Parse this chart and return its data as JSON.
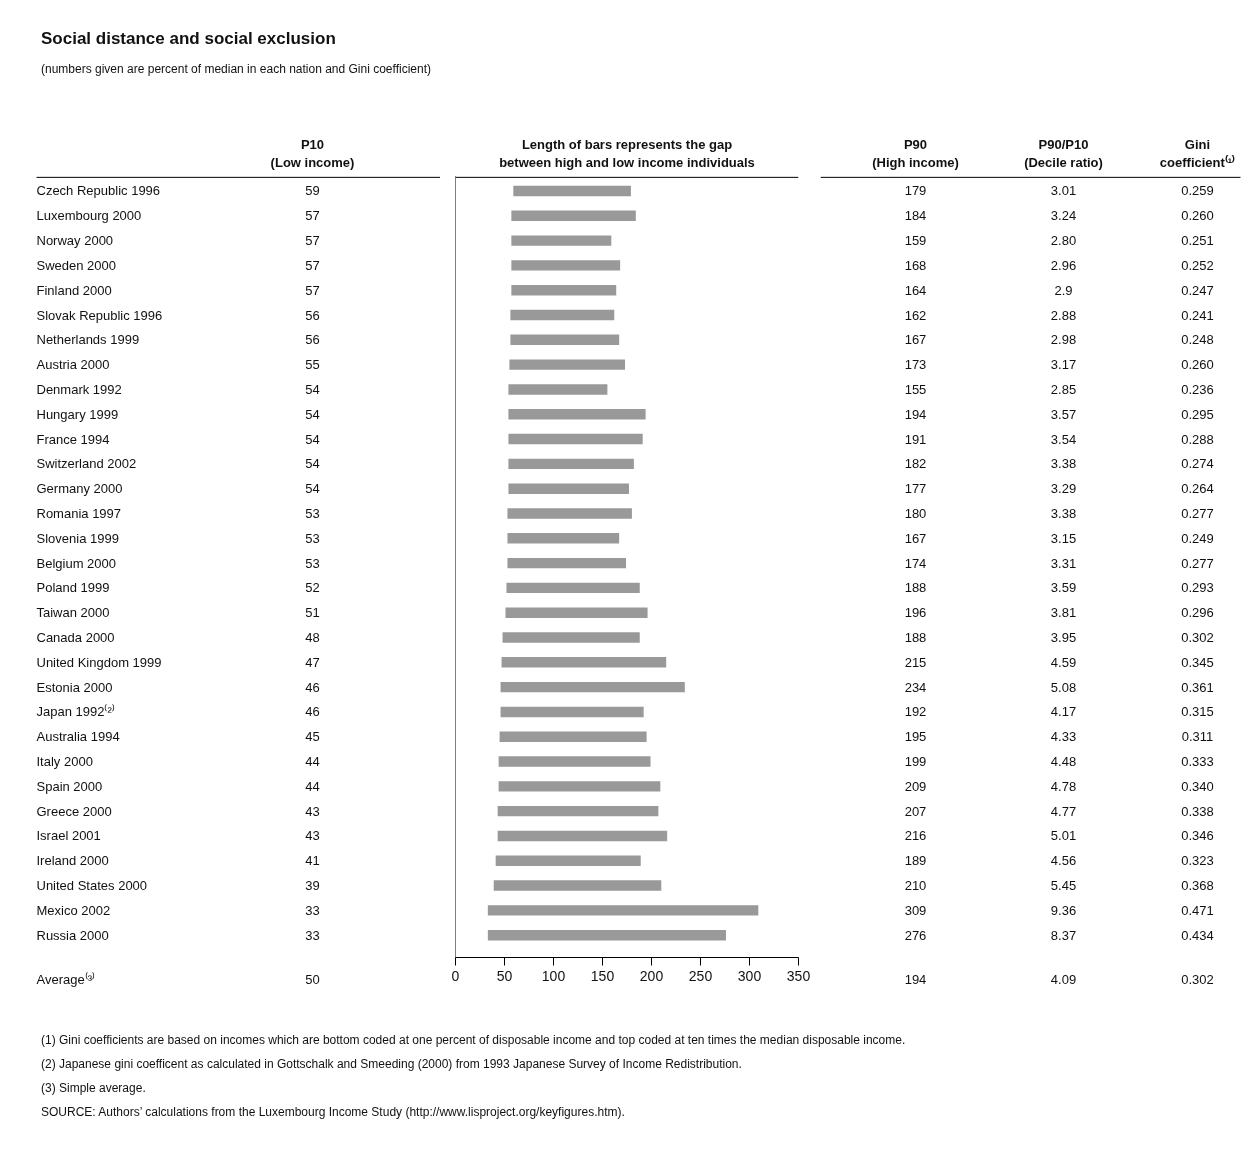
{
  "chart_data": [
    {
      "type": "other",
      "title": "Social distance and social exclusion",
      "subtitle": "(numbers given are percent of median in each nation and Gini coefficient)",
      "categories": [
        "Czech Republic 1996",
        "Luxembourg 2000",
        "Norway 2000",
        "Sweden 2000",
        "Finland 2000",
        "Slovak Republic 1996",
        "Netherlands 1999",
        "Austria 2000",
        "Denmark 1992",
        "Hungary 1999",
        "France 1994",
        "Switzerland 2002",
        "Germany 2000",
        "Romania 1997",
        "Slovenia 1999",
        "Belgium 2000",
        "Poland 1999",
        "Taiwan 2000",
        "Canada 2000",
        "United Kingdom 1999",
        "Estonia 2000",
        "Japan 1992⁽²⁾",
        "Australia 1994",
        "Italy 2000",
        "Spain 2000",
        "Greece 2000",
        "Israel 2001",
        "Ireland 2000",
        "United States 2000",
        "Mexico 2002",
        "Russia 2000",
        "Average⁽³⁾"
      ],
      "series": [
        {
          "name": "P10\n(Low income)",
          "values": [
            59,
            57,
            57,
            57,
            57,
            56,
            56,
            55,
            54,
            54,
            54,
            54,
            54,
            53,
            53,
            53,
            52,
            51,
            48,
            47,
            46,
            46,
            45,
            44,
            44,
            43,
            43,
            41,
            39,
            33,
            33,
            50
          ]
        },
        {
          "name": "P90\n(High income)",
          "values": [
            179,
            184,
            159,
            168,
            164,
            162,
            167,
            173,
            155,
            194,
            191,
            182,
            177,
            180,
            167,
            174,
            188,
            196,
            188,
            215,
            234,
            192,
            195,
            199,
            209,
            207,
            216,
            189,
            210,
            309,
            276,
            194
          ]
        },
        {
          "name": "P90/P10\n(Decile ratio)",
          "values": [
            3.01,
            3.24,
            2.8,
            2.96,
            2.9,
            2.88,
            2.98,
            3.17,
            2.85,
            3.57,
            3.54,
            3.38,
            3.29,
            3.38,
            3.15,
            3.31,
            3.59,
            3.81,
            3.95,
            4.59,
            5.08,
            4.17,
            4.33,
            4.48,
            4.78,
            4.77,
            5.01,
            4.56,
            5.45,
            9.36,
            8.37,
            4.09
          ],
          "value_labels": [
            "3.01",
            "3.24",
            "2.80",
            "2.96",
            "2.9",
            "2.88",
            "2.98",
            "3.17",
            "2.85",
            "3.57",
            "3.54",
            "3.38",
            "3.29",
            "3.38",
            "3.15",
            "3.31",
            "3.59",
            "3.81",
            "3.95",
            "4.59",
            "5.08",
            "4.17",
            "4.33",
            "4.48",
            "4.78",
            "4.77",
            "5.01",
            "4.56",
            "5.45",
            "9.36",
            "8.37",
            "4.09"
          ]
        },
        {
          "name": "Gini\ncoefficient⁽¹⁾",
          "values": [
            0.259,
            0.26,
            0.251,
            0.252,
            0.247,
            0.241,
            0.248,
            0.26,
            0.236,
            0.295,
            0.288,
            0.274,
            0.264,
            0.277,
            0.249,
            0.277,
            0.293,
            0.296,
            0.302,
            0.345,
            0.361,
            0.315,
            0.311,
            0.333,
            0.34,
            0.338,
            0.346,
            0.323,
            0.368,
            0.471,
            0.434,
            0.302
          ],
          "value_labels": [
            "0.259",
            "0.260",
            "0.251",
            "0.252",
            "0.247",
            "0.241",
            "0.248",
            "0.260",
            "0.236",
            "0.295",
            "0.288",
            "0.274",
            "0.264",
            "0.277",
            "0.249",
            "0.277",
            "0.293",
            "0.296",
            "0.302",
            "0.345",
            "0.361",
            "0.315",
            "0.311",
            "0.333",
            "0.340",
            "0.338",
            "0.346",
            "0.323",
            "0.368",
            "0.471",
            "0.434",
            "0.302"
          ]
        }
      ],
      "data_labels": true,
      "annotations": [
        "(1) Gini coefficients are based on incomes which are bottom coded at one percent of disposable income and top coded at ten times the median disposable income.",
        "(2) Japanese gini coefficent as calculated in Gottschalk and Smeeding (2000) from 1993 Japanese Survey of Income Redistribution.",
        "(3) Simple average.",
        "SOURCE: Authors’ calculations from the Luxembourg Income Study (http://www.lisproject.org/keyfigures.htm)."
      ]
    },
    {
      "type": "bar",
      "orientation": "horizontal",
      "title": "Length of bars represents the gap\nbetween high and low income individuals",
      "categories": [
        null,
        null,
        null,
        null,
        null,
        null,
        null,
        null,
        null,
        null,
        null,
        null,
        null,
        null,
        null,
        null,
        null,
        null,
        null,
        null,
        null,
        null,
        null,
        null,
        null,
        null,
        null,
        null,
        null,
        null,
        null
      ],
      "base": [
        59,
        57,
        57,
        57,
        57,
        56,
        56,
        55,
        54,
        54,
        54,
        54,
        54,
        53,
        53,
        53,
        52,
        51,
        48,
        47,
        46,
        46,
        45,
        44,
        44,
        43,
        43,
        41,
        39,
        33,
        33
      ],
      "values": [
        120,
        127,
        102,
        111,
        107,
        106,
        111,
        118,
        101,
        140,
        137,
        128,
        123,
        127,
        114,
        121,
        136,
        145,
        140,
        168,
        188,
        146,
        150,
        155,
        165,
        164,
        173,
        148,
        171,
        276,
        243
      ],
      "color": "#999999",
      "xlim": [
        0,
        350
      ],
      "xticks": [
        0,
        50,
        100,
        150,
        200,
        250,
        300,
        350
      ],
      "tick_labels": "x",
      "grid": false
    }
  ]
}
